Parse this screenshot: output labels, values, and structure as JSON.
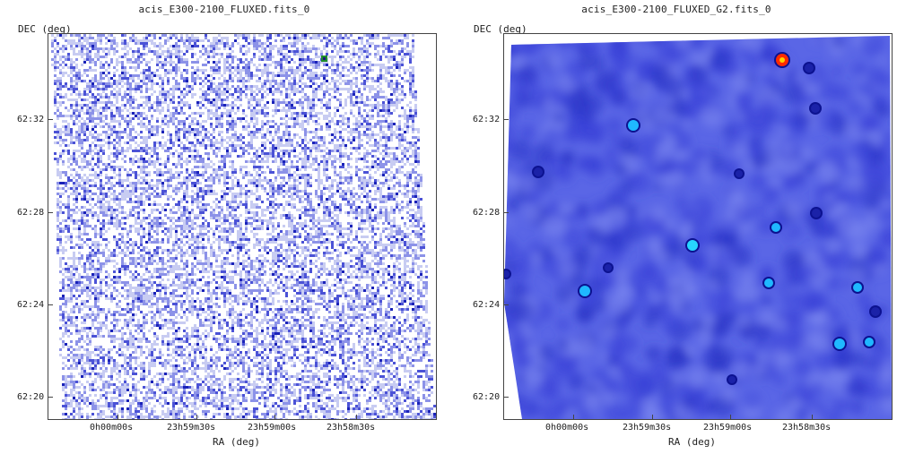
{
  "panels": [
    {
      "title": "acis_E300-2100_FLUXED.fits_0",
      "ylabel": "DEC (deg)",
      "xlabel": "RA (deg)",
      "y_ticks": [
        "62:32",
        "62:28",
        "62:24",
        "62:20"
      ],
      "x_ticks": [
        "0h00m00s",
        "23h59m30s",
        "23h59m00s",
        "23h58m30s"
      ],
      "image_style": "noise-map",
      "colormap": [
        "#ffffff",
        "#c8ccf2",
        "#8c92e8",
        "#4b52d6",
        "#1a22b8"
      ]
    },
    {
      "title": "acis_E300-2100_FLUXED_G2.fits_0",
      "ylabel": "DEC (deg)",
      "xlabel": "RA (deg)",
      "y_ticks": [
        "62:32",
        "62:28",
        "62:24",
        "62:20"
      ],
      "x_ticks": [
        "0h00m00s",
        "23h59m30s",
        "23h59m00s",
        "23h58m30s"
      ],
      "image_style": "smoothed-map",
      "colormap": [
        "#5a66e6",
        "#3a44d8",
        "#2a34c6",
        "#1b22a8"
      ]
    }
  ]
}
